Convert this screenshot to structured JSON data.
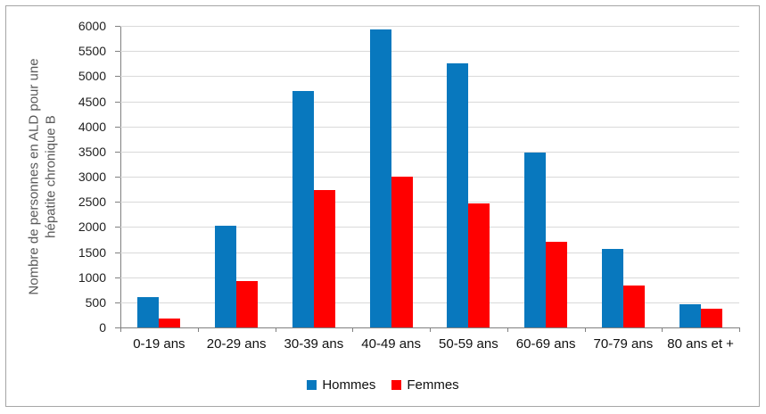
{
  "chart_data": {
    "type": "bar",
    "title": "",
    "categories": [
      "0-19 ans",
      "20-29 ans",
      "30-39 ans",
      "40-49 ans",
      "50-59 ans",
      "60-69 ans",
      "70-79 ans",
      "80 ans et +"
    ],
    "series": [
      {
        "name": "Hommes",
        "color": "#0878BE",
        "values": [
          600,
          2030,
          4700,
          5930,
          5250,
          3480,
          1560,
          470
        ]
      },
      {
        "name": "Femmes",
        "color": "#FF0000",
        "values": [
          170,
          920,
          2730,
          3000,
          2470,
          1710,
          840,
          380
        ]
      }
    ],
    "ylabel_line1": "Nombre de personnes en ALD pour une",
    "ylabel_line2": "hépatite chronique B",
    "xlabel": "",
    "ylim": [
      0,
      6000
    ],
    "ytick_step": 500,
    "grid": true,
    "legend_position": "bottom"
  },
  "colors": {
    "hommes": "#0878BE",
    "femmes": "#FF0000",
    "gridline": "#d9d9d9",
    "axis_line": "#808080",
    "tick_label": "#1f1f1f",
    "y_title": "#595959",
    "frame_border": "#a6a6a6"
  }
}
